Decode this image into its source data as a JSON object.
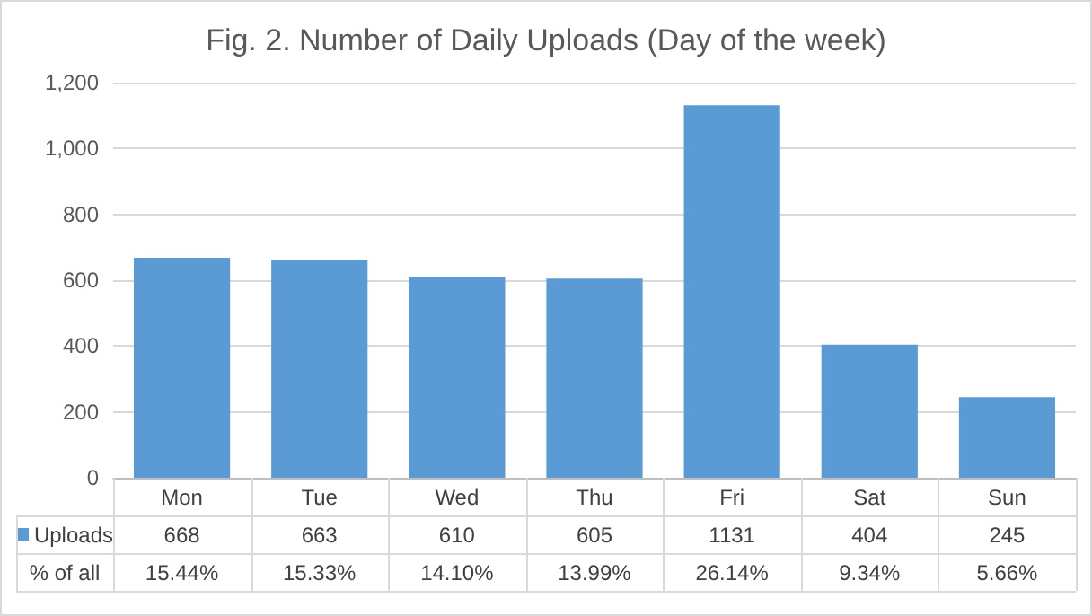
{
  "chart_data": {
    "type": "bar",
    "title": "Fig. 2. Number of Daily Uploads (Day of the week)",
    "categories": [
      "Mon",
      "Tue",
      "Wed",
      "Thu",
      "Fri",
      "Sat",
      "Sun"
    ],
    "series": [
      {
        "name": "Uploads",
        "color": "#5b9bd5",
        "values": [
          668,
          663,
          610,
          605,
          1131,
          404,
          245
        ]
      }
    ],
    "ylim": [
      0,
      1200
    ],
    "yticks": [
      0,
      200,
      400,
      600,
      800,
      {
        "value": 1000,
        "label": "1,000"
      },
      {
        "value": 1200,
        "label": "1,200"
      }
    ],
    "grid": "y",
    "data_labels": true,
    "legend": "bottom",
    "annotations": [
      "% of all",
      "15.44%",
      "15.33%",
      "14.10%",
      "13.99%",
      "26.14%",
      "9.34%",
      "5.66%"
    ]
  }
}
